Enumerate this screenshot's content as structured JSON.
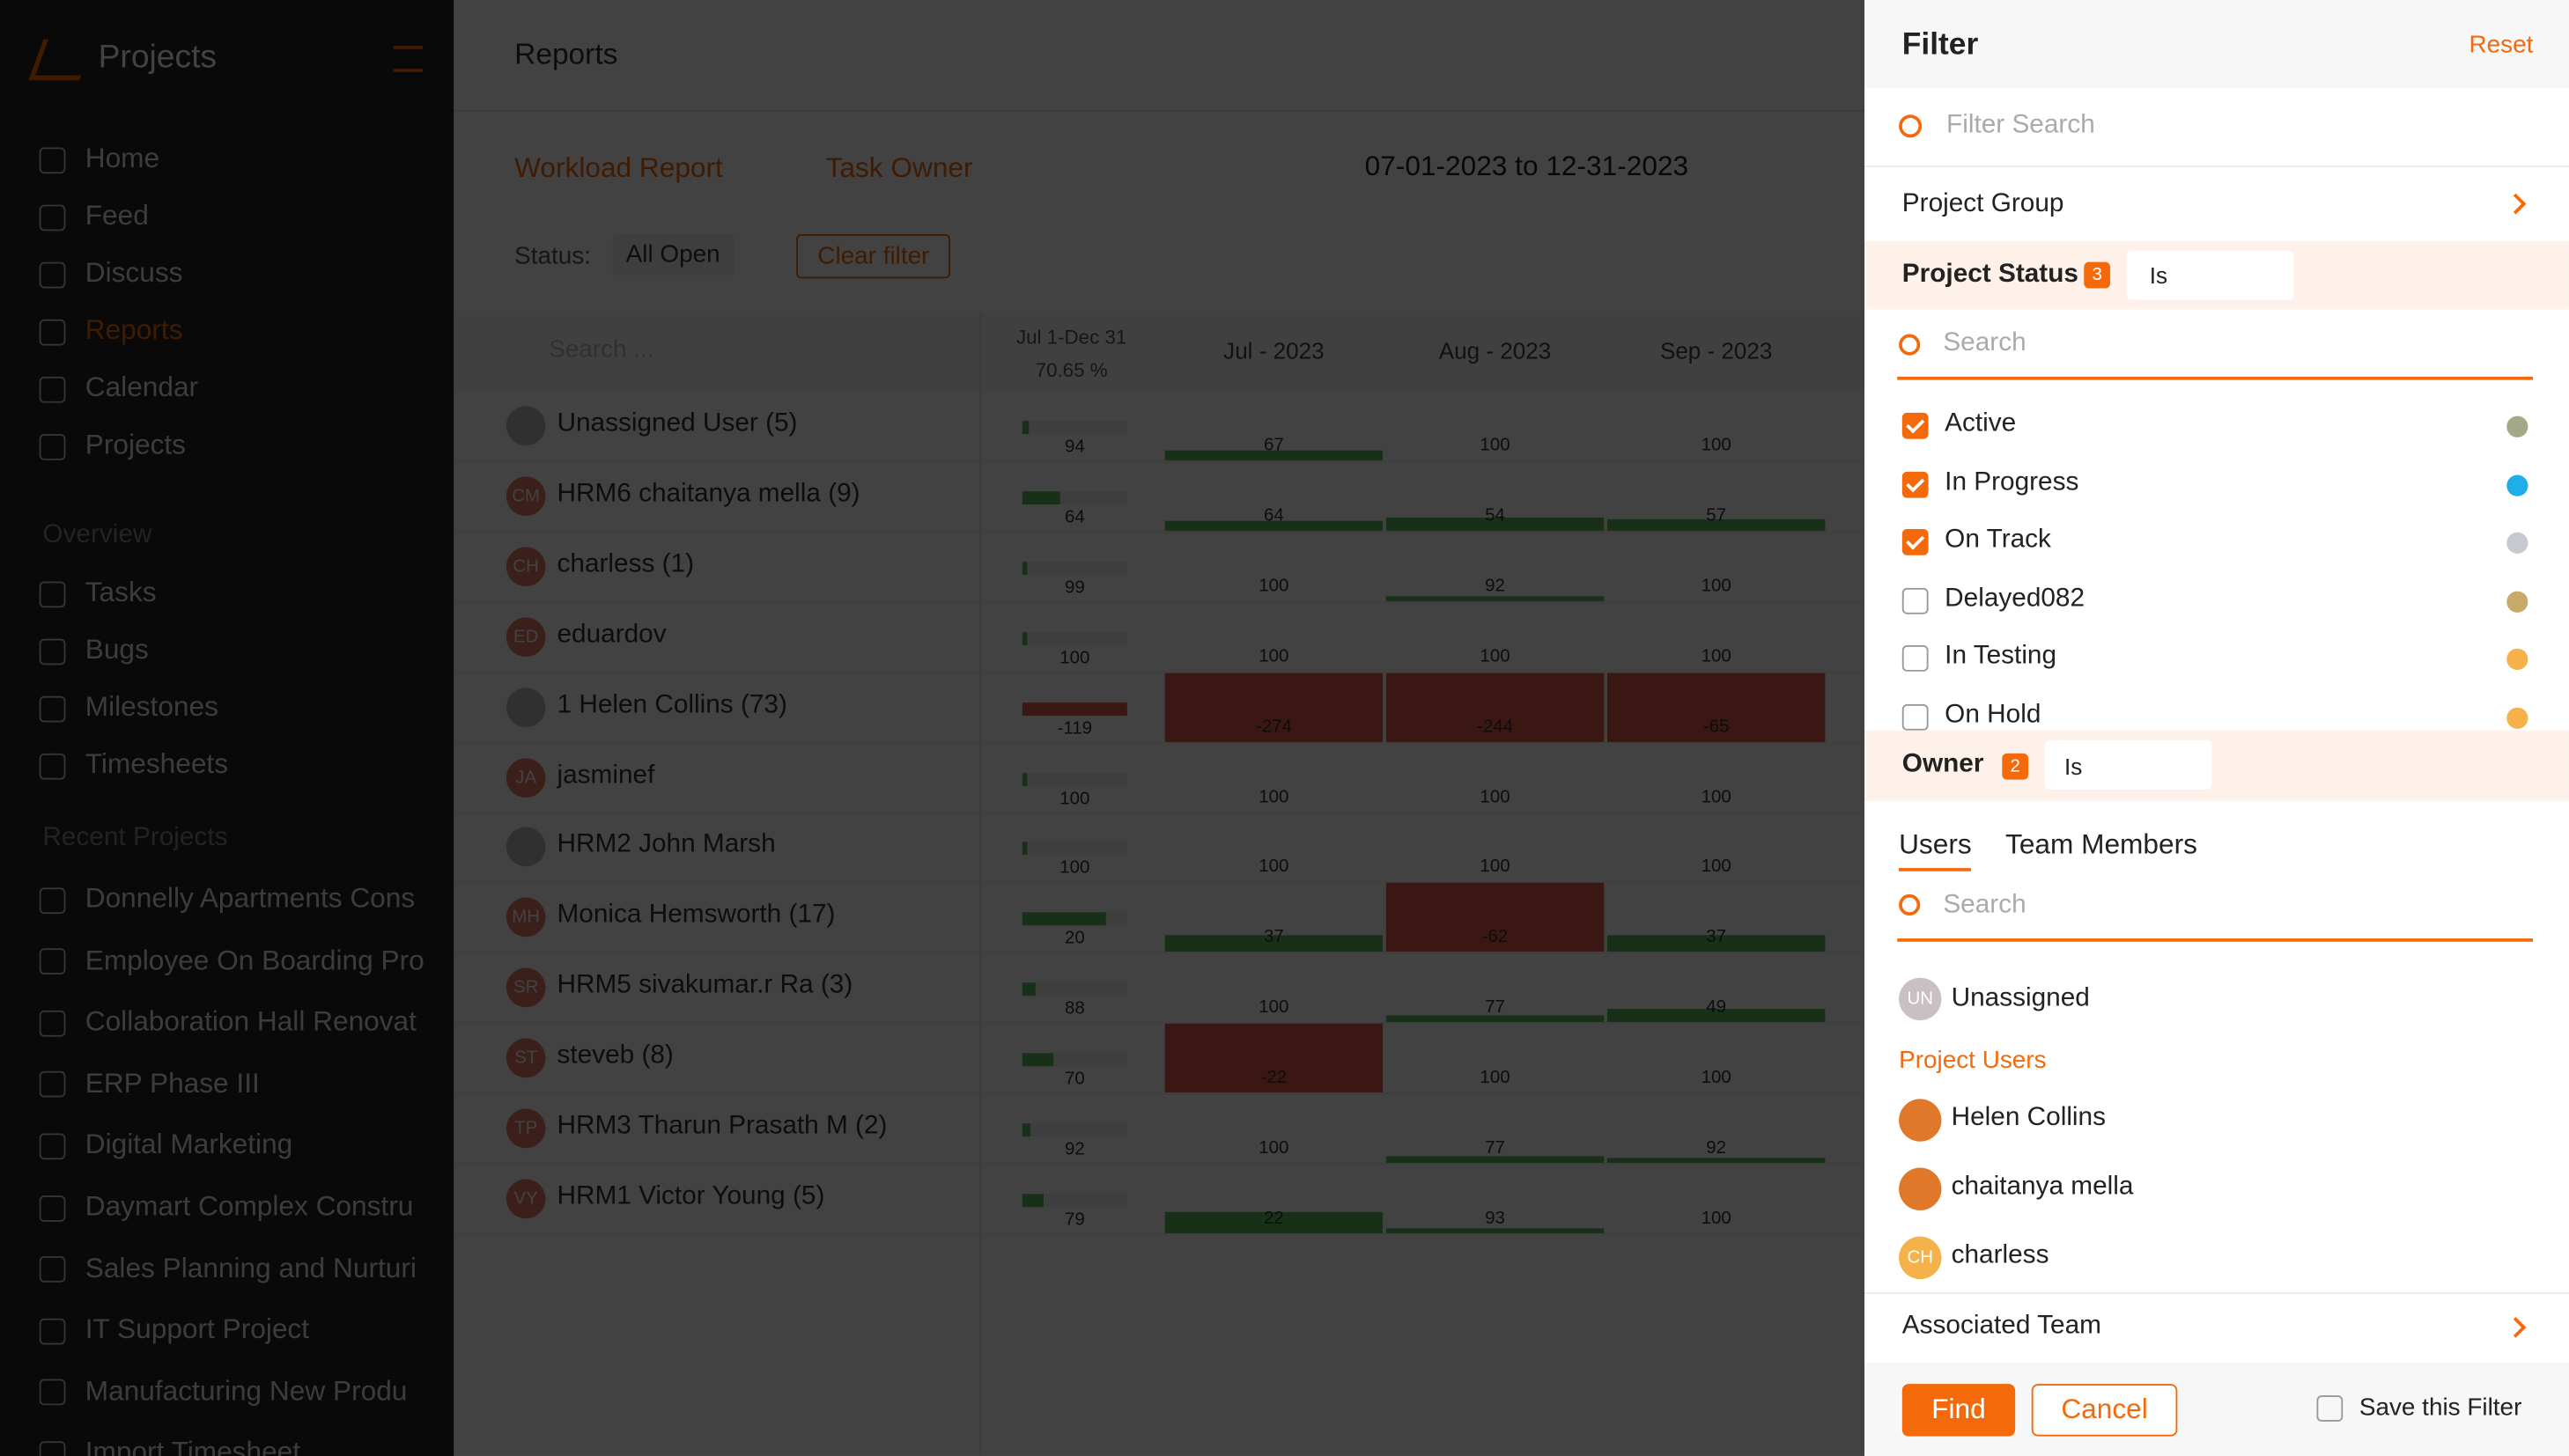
{
  "sidebar": {
    "app_title": "Projects",
    "nav": [
      "Home",
      "Feed",
      "Discuss",
      "Reports",
      "Calendar",
      "Projects"
    ],
    "overview_label": "Overview",
    "overview_items": [
      "Tasks",
      "Bugs",
      "Milestones",
      "Timesheets"
    ],
    "recent_label": "Recent Projects",
    "recent": [
      "Donnelly Apartments Cons",
      "Employee On Boarding Pro",
      "Collaboration Hall Renovat",
      "ERP Phase III",
      "Digital Marketing",
      "Daymart Complex Constru",
      "Sales Planning and Nurturi",
      "IT Support Project",
      "Manufacturing New Produ",
      "Import Timesheet"
    ]
  },
  "report": {
    "page_title": "Reports",
    "breadcrumb": [
      "Workload Report",
      "Task Owner"
    ],
    "date_range": "07-01-2023 to 12-31-2023",
    "status_label": "Status:",
    "status_value": "All Open",
    "clear_filter": "Clear filter",
    "search_placeholder": "Search ...",
    "summary_header": [
      "Jul 1-Dec 31",
      "70.65 %"
    ],
    "months": [
      "Jul - 2023",
      "Aug - 2023",
      "Sep - 2023"
    ],
    "rows": [
      {
        "initials": null,
        "name": "Unassigned User (5)",
        "summary": 94,
        "cells": [
          67,
          100,
          100
        ]
      },
      {
        "initials": "CM",
        "name": "HRM6 chaitanya mella (9)",
        "summary": 64,
        "cells": [
          64,
          54,
          57
        ]
      },
      {
        "initials": "CH",
        "name": "charless (1)",
        "summary": 99,
        "cells": [
          100,
          92,
          100
        ]
      },
      {
        "initials": "ED",
        "name": "eduardov",
        "summary": 100,
        "cells": [
          100,
          100,
          100
        ]
      },
      {
        "initials": null,
        "name": "1 Helen Collins (73)",
        "summary": -119,
        "cells": [
          -274,
          -244,
          -65
        ]
      },
      {
        "initials": "JA",
        "name": "jasminef",
        "summary": 100,
        "cells": [
          100,
          100,
          100
        ]
      },
      {
        "initials": null,
        "name": "HRM2 John Marsh",
        "summary": 100,
        "cells": [
          100,
          100,
          100
        ]
      },
      {
        "initials": "MH",
        "name": "Monica Hemsworth (17)",
        "summary": 20,
        "cells": [
          37,
          -62,
          37
        ]
      },
      {
        "initials": "SR",
        "name": "HRM5 sivakumar.r Ra (3)",
        "summary": 88,
        "cells": [
          100,
          77,
          49
        ]
      },
      {
        "initials": "ST",
        "name": "steveb (8)",
        "summary": 70,
        "cells": [
          -22,
          100,
          100
        ]
      },
      {
        "initials": "TP",
        "name": "HRM3 Tharun Prasath M (2)",
        "summary": 92,
        "cells": [
          100,
          77,
          92
        ]
      },
      {
        "initials": "VY",
        "name": "HRM1 Victor Young (5)",
        "summary": 79,
        "cells": [
          22,
          93,
          100
        ]
      }
    ]
  },
  "filter": {
    "title": "Filter",
    "reset": "Reset",
    "search": "Filter Search",
    "project_group": "Project Group",
    "project_status": {
      "label": "Project Status",
      "count": 3,
      "operator": "Is",
      "search": "Search",
      "options": [
        {
          "label": "Active",
          "checked": true,
          "color": "#a3a887"
        },
        {
          "label": "In Progress",
          "checked": true,
          "color": "#1eaee8"
        },
        {
          "label": "On Track",
          "checked": true,
          "color": "#c8c9cf"
        },
        {
          "label": "Delayed082",
          "checked": false,
          "color": "#c8a96a"
        },
        {
          "label": "In Testing",
          "checked": false,
          "color": "#f5b14a"
        },
        {
          "label": "On Hold",
          "checked": false,
          "color": "#f5b14a"
        }
      ]
    },
    "owner": {
      "label": "Owner",
      "count": 2,
      "operator": "Is",
      "tabs": [
        "Users",
        "Team Members"
      ],
      "search": "Search",
      "unassigned": {
        "initials": "UN",
        "label": "Unassigned"
      },
      "section": "Project Users",
      "users": [
        {
          "initials": null,
          "name": "Helen Collins"
        },
        {
          "initials": null,
          "name": "chaitanya mella"
        },
        {
          "initials": "CH",
          "name": "charless"
        }
      ]
    },
    "associated_team": "Associated Team",
    "find": "Find",
    "cancel": "Cancel",
    "save_filter": "Save this Filter"
  }
}
